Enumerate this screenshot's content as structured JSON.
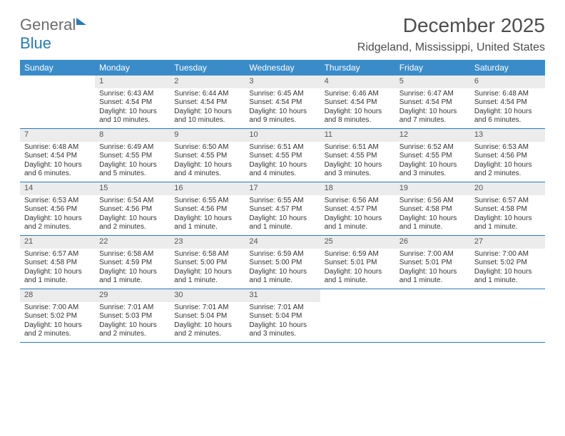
{
  "brand": {
    "part1": "General",
    "part2": "Blue"
  },
  "title": "December 2025",
  "location": "Ridgeland, Mississippi, United States",
  "style": {
    "header_bg": "#3a8cc9",
    "header_fg": "#ffffff",
    "daynum_bg": "#ececec",
    "daynum_fg": "#555555",
    "text_color": "#333333",
    "border_color": "#2a7ab8",
    "body_font_size": 10,
    "header_font_size": 12
  },
  "weekdays": [
    "Sunday",
    "Monday",
    "Tuesday",
    "Wednesday",
    "Thursday",
    "Friday",
    "Saturday"
  ],
  "weeks": [
    [
      null,
      {
        "n": "1",
        "sr": "6:43 AM",
        "ss": "4:54 PM",
        "dl": "10 hours and 10 minutes."
      },
      {
        "n": "2",
        "sr": "6:44 AM",
        "ss": "4:54 PM",
        "dl": "10 hours and 10 minutes."
      },
      {
        "n": "3",
        "sr": "6:45 AM",
        "ss": "4:54 PM",
        "dl": "10 hours and 9 minutes."
      },
      {
        "n": "4",
        "sr": "6:46 AM",
        "ss": "4:54 PM",
        "dl": "10 hours and 8 minutes."
      },
      {
        "n": "5",
        "sr": "6:47 AM",
        "ss": "4:54 PM",
        "dl": "10 hours and 7 minutes."
      },
      {
        "n": "6",
        "sr": "6:48 AM",
        "ss": "4:54 PM",
        "dl": "10 hours and 6 minutes."
      }
    ],
    [
      {
        "n": "7",
        "sr": "6:48 AM",
        "ss": "4:54 PM",
        "dl": "10 hours and 6 minutes."
      },
      {
        "n": "8",
        "sr": "6:49 AM",
        "ss": "4:55 PM",
        "dl": "10 hours and 5 minutes."
      },
      {
        "n": "9",
        "sr": "6:50 AM",
        "ss": "4:55 PM",
        "dl": "10 hours and 4 minutes."
      },
      {
        "n": "10",
        "sr": "6:51 AM",
        "ss": "4:55 PM",
        "dl": "10 hours and 4 minutes."
      },
      {
        "n": "11",
        "sr": "6:51 AM",
        "ss": "4:55 PM",
        "dl": "10 hours and 3 minutes."
      },
      {
        "n": "12",
        "sr": "6:52 AM",
        "ss": "4:55 PM",
        "dl": "10 hours and 3 minutes."
      },
      {
        "n": "13",
        "sr": "6:53 AM",
        "ss": "4:56 PM",
        "dl": "10 hours and 2 minutes."
      }
    ],
    [
      {
        "n": "14",
        "sr": "6:53 AM",
        "ss": "4:56 PM",
        "dl": "10 hours and 2 minutes."
      },
      {
        "n": "15",
        "sr": "6:54 AM",
        "ss": "4:56 PM",
        "dl": "10 hours and 2 minutes."
      },
      {
        "n": "16",
        "sr": "6:55 AM",
        "ss": "4:56 PM",
        "dl": "10 hours and 1 minute."
      },
      {
        "n": "17",
        "sr": "6:55 AM",
        "ss": "4:57 PM",
        "dl": "10 hours and 1 minute."
      },
      {
        "n": "18",
        "sr": "6:56 AM",
        "ss": "4:57 PM",
        "dl": "10 hours and 1 minute."
      },
      {
        "n": "19",
        "sr": "6:56 AM",
        "ss": "4:58 PM",
        "dl": "10 hours and 1 minute."
      },
      {
        "n": "20",
        "sr": "6:57 AM",
        "ss": "4:58 PM",
        "dl": "10 hours and 1 minute."
      }
    ],
    [
      {
        "n": "21",
        "sr": "6:57 AM",
        "ss": "4:58 PM",
        "dl": "10 hours and 1 minute."
      },
      {
        "n": "22",
        "sr": "6:58 AM",
        "ss": "4:59 PM",
        "dl": "10 hours and 1 minute."
      },
      {
        "n": "23",
        "sr": "6:58 AM",
        "ss": "5:00 PM",
        "dl": "10 hours and 1 minute."
      },
      {
        "n": "24",
        "sr": "6:59 AM",
        "ss": "5:00 PM",
        "dl": "10 hours and 1 minute."
      },
      {
        "n": "25",
        "sr": "6:59 AM",
        "ss": "5:01 PM",
        "dl": "10 hours and 1 minute."
      },
      {
        "n": "26",
        "sr": "7:00 AM",
        "ss": "5:01 PM",
        "dl": "10 hours and 1 minute."
      },
      {
        "n": "27",
        "sr": "7:00 AM",
        "ss": "5:02 PM",
        "dl": "10 hours and 1 minute."
      }
    ],
    [
      {
        "n": "28",
        "sr": "7:00 AM",
        "ss": "5:02 PM",
        "dl": "10 hours and 2 minutes."
      },
      {
        "n": "29",
        "sr": "7:01 AM",
        "ss": "5:03 PM",
        "dl": "10 hours and 2 minutes."
      },
      {
        "n": "30",
        "sr": "7:01 AM",
        "ss": "5:04 PM",
        "dl": "10 hours and 2 minutes."
      },
      {
        "n": "31",
        "sr": "7:01 AM",
        "ss": "5:04 PM",
        "dl": "10 hours and 3 minutes."
      },
      null,
      null,
      null
    ]
  ],
  "labels": {
    "sunrise": "Sunrise: ",
    "sunset": "Sunset: ",
    "daylight": "Daylight: "
  }
}
